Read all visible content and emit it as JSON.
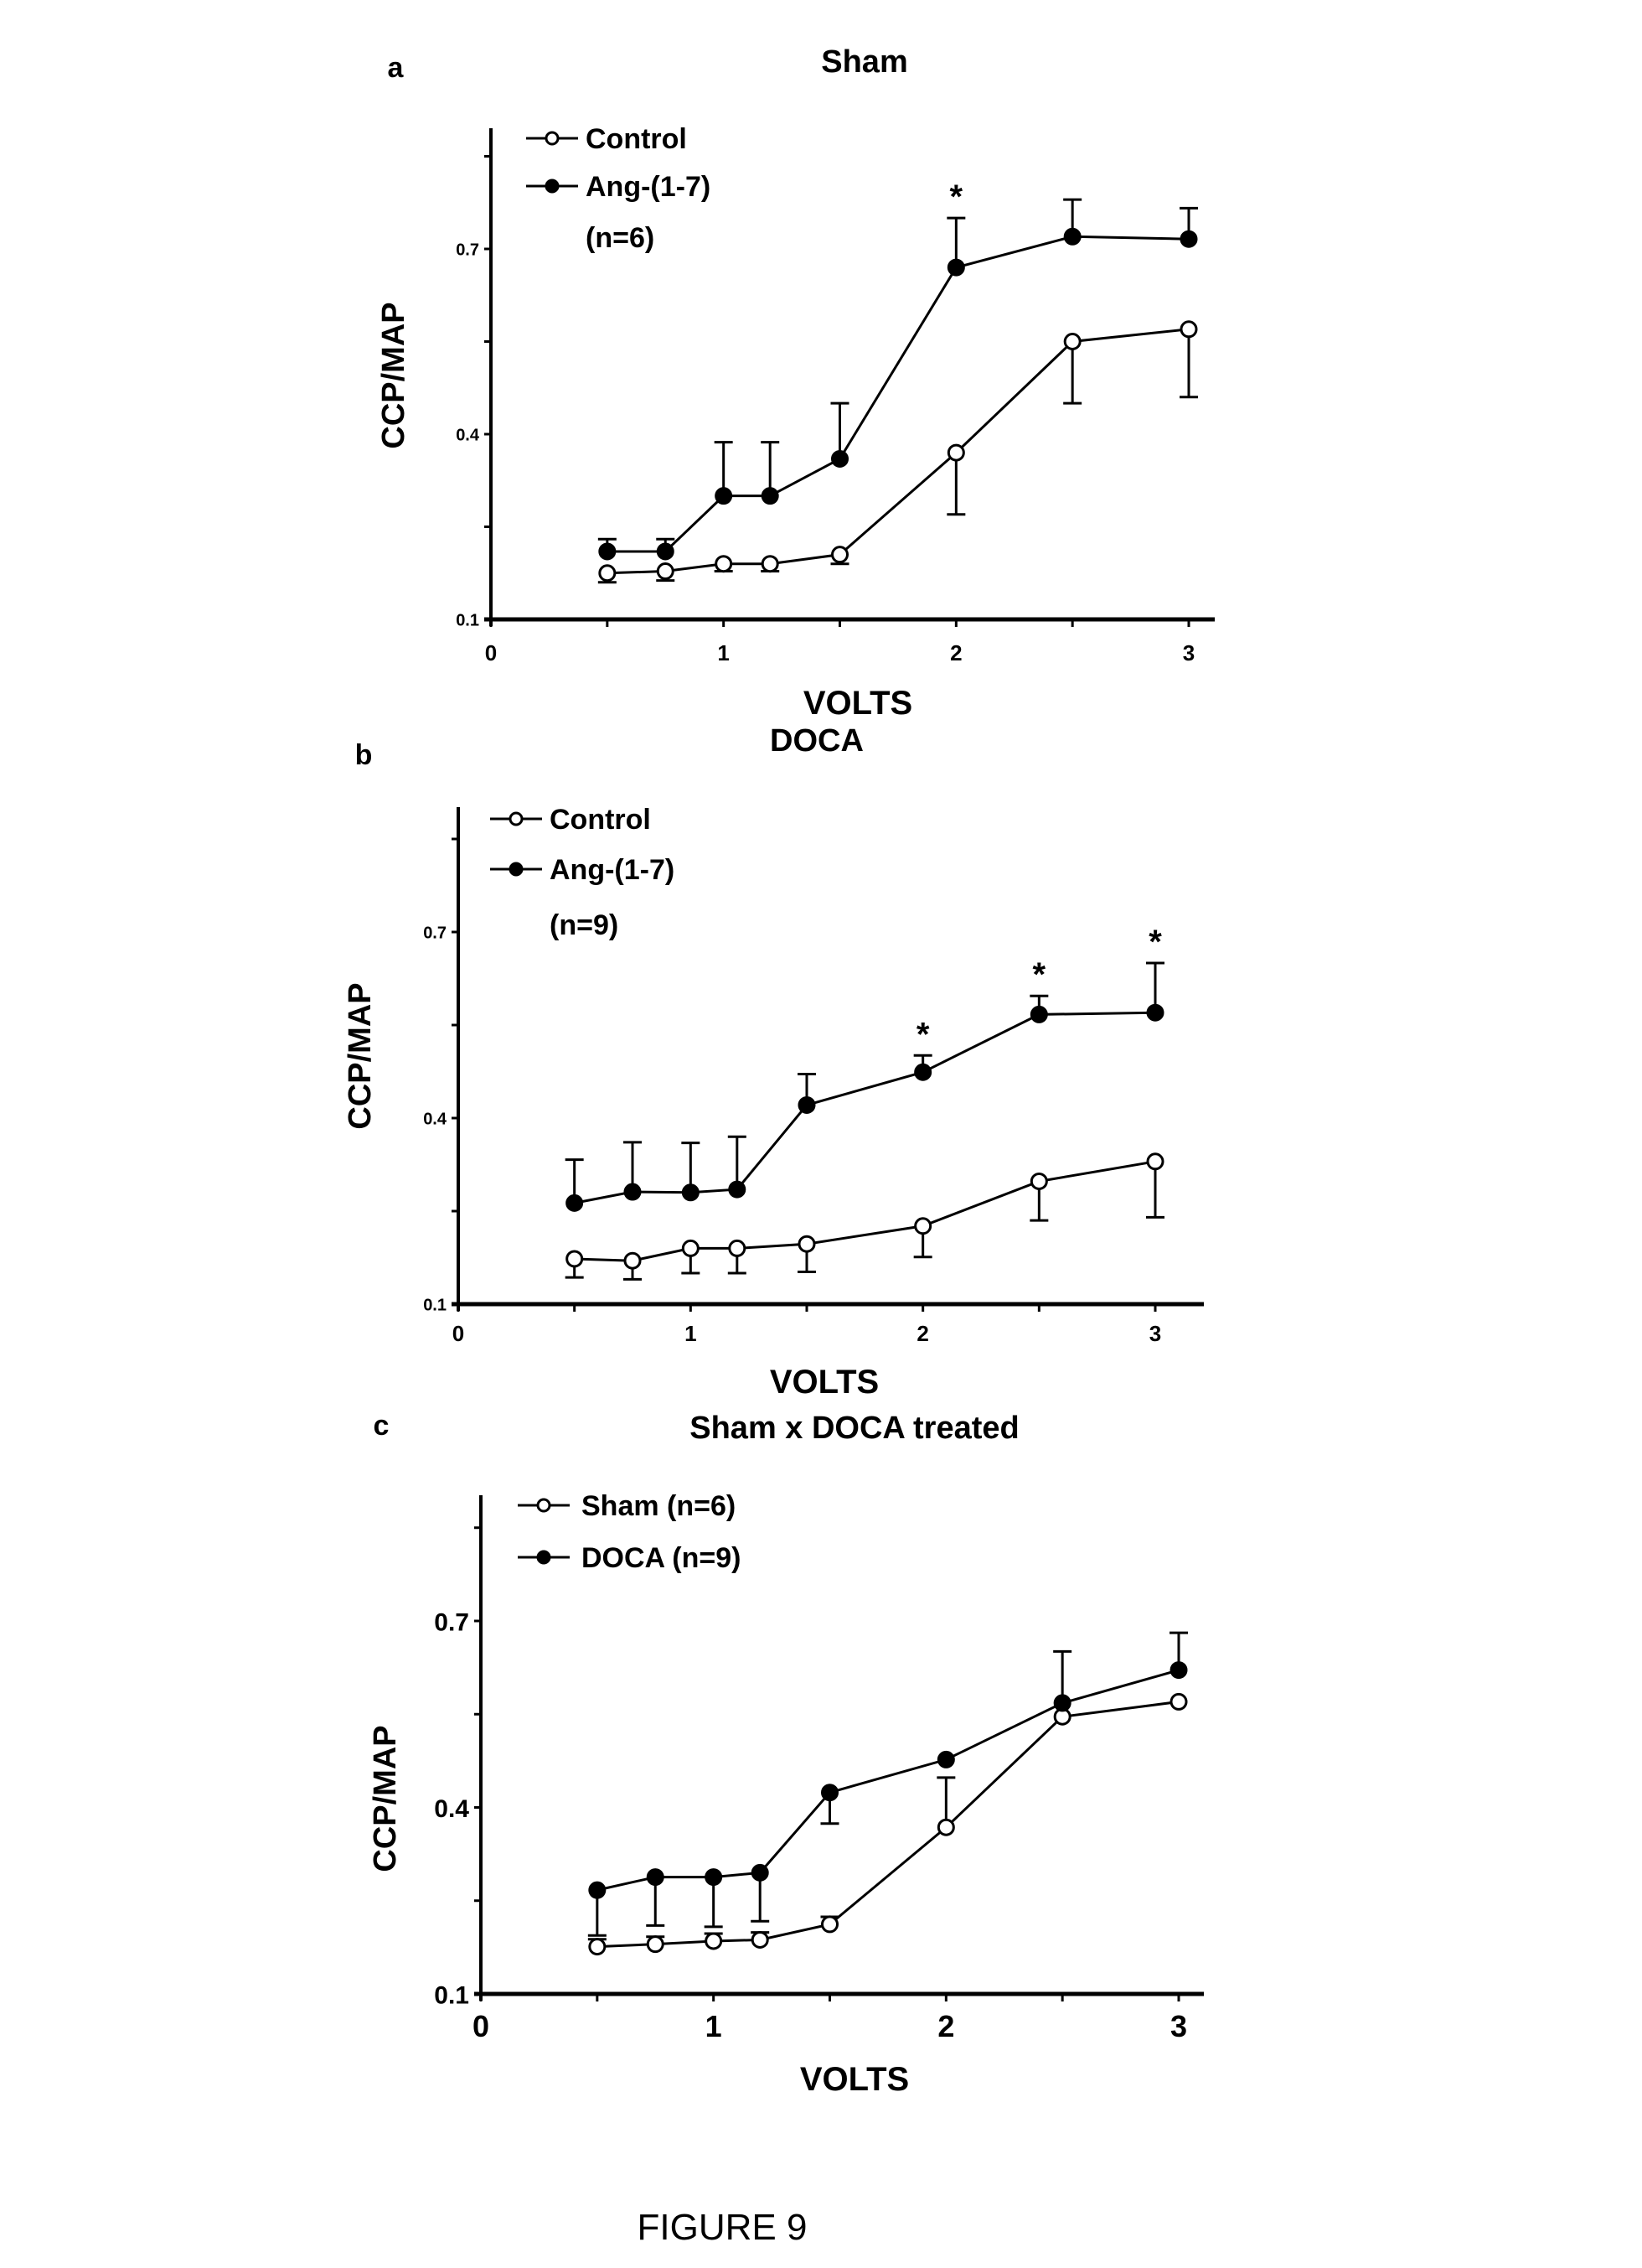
{
  "figure_caption": "FIGURE 9",
  "chart_data": [
    {
      "type": "line",
      "panel_label": "a",
      "title": "Sham",
      "xlabel": "VOLTS",
      "ylabel": "CCP/MAP",
      "xlim": [
        0,
        3.2
      ],
      "ylim": [
        0.1,
        0.9
      ],
      "xticks": [
        "0",
        "1",
        "2",
        "3"
      ],
      "yticks": [
        "0.1",
        "0.4",
        "0.7"
      ],
      "legend_note": "(n=6)",
      "legend_position": "top-left",
      "x": [
        0.5,
        0.75,
        1.0,
        1.2,
        1.5,
        2.0,
        2.5,
        3.0
      ],
      "series": [
        {
          "name": "Control",
          "marker": "open-circle",
          "values": [
            0.175,
            0.178,
            0.19,
            0.19,
            0.205,
            0.37,
            0.55,
            0.57
          ],
          "errors": [
            0.015,
            0.015,
            0.012,
            0.012,
            0.015,
            0.1,
            0.1,
            0.11
          ],
          "error_direction": "down"
        },
        {
          "name": "Ang-(1-7)",
          "marker": "filled-circle",
          "values": [
            0.21,
            0.21,
            0.3,
            0.3,
            0.36,
            0.67,
            0.72,
            0.716
          ],
          "errors": [
            0.02,
            0.02,
            0.087,
            0.087,
            0.09,
            0.08,
            0.06,
            0.05
          ],
          "error_direction": "up"
        }
      ],
      "significance": [
        {
          "x": 2.0,
          "label": "*"
        }
      ]
    },
    {
      "type": "line",
      "panel_label": "b",
      "title": "DOCA",
      "xlabel": "VOLTS",
      "ylabel": "CCP/MAP",
      "xlim": [
        0,
        3.2
      ],
      "ylim": [
        0.1,
        0.9
      ],
      "xticks": [
        "0",
        "1",
        "2",
        "3"
      ],
      "yticks": [
        "0.1",
        "0.4",
        "0.7"
      ],
      "legend_note": "(n=9)",
      "legend_position": "top-left",
      "x": [
        0.5,
        0.75,
        1.0,
        1.2,
        1.5,
        2.0,
        2.5,
        3.0
      ],
      "series": [
        {
          "name": "Control",
          "marker": "open-circle",
          "values": [
            0.173,
            0.17,
            0.19,
            0.19,
            0.197,
            0.226,
            0.298,
            0.33
          ],
          "errors": [
            0.03,
            0.03,
            0.04,
            0.04,
            0.045,
            0.05,
            0.063,
            0.09
          ],
          "error_direction": "down"
        },
        {
          "name": "Ang-(1-7)",
          "marker": "filled-circle",
          "values": [
            0.263,
            0.281,
            0.28,
            0.285,
            0.421,
            0.474,
            0.567,
            0.57
          ],
          "errors": [
            0.07,
            0.08,
            0.08,
            0.085,
            0.05,
            0.027,
            0.03,
            0.08
          ],
          "error_direction": "up"
        }
      ],
      "significance": [
        {
          "x": 2.0,
          "label": "*"
        },
        {
          "x": 2.5,
          "label": "*"
        },
        {
          "x": 3.0,
          "label": "*"
        }
      ]
    },
    {
      "type": "line",
      "panel_label": "c",
      "title": "Sham x DOCA treated",
      "xlabel": "VOLTS",
      "ylabel": "CCP/MAP",
      "xlim": [
        0,
        3.2
      ],
      "ylim": [
        0.1,
        0.9
      ],
      "xticks": [
        "0",
        "1",
        "2",
        "3"
      ],
      "yticks": [
        "0.1",
        "0.4",
        "0.7"
      ],
      "legend_note": "",
      "legend_position": "top-left",
      "x": [
        0.5,
        0.75,
        1.0,
        1.2,
        1.5,
        2.0,
        2.5,
        3.0
      ],
      "series": [
        {
          "name": "Sham (n=6)",
          "marker": "open-circle",
          "values": [
            0.176,
            0.18,
            0.185,
            0.187,
            0.212,
            0.368,
            0.546,
            0.57
          ],
          "errors": [
            0.012,
            0.012,
            0.012,
            0.012,
            0.012,
            0.08,
            0.0,
            0.0
          ],
          "error_direction": "up"
        },
        {
          "name": "DOCA (n=9)",
          "marker": "filled-circle",
          "values": [
            0.267,
            0.288,
            0.288,
            0.295,
            0.424,
            0.477,
            0.568,
            0.621
          ],
          "errors": [
            0.073,
            0.078,
            0.08,
            0.078,
            0.05,
            0.0,
            0.083,
            0.06
          ],
          "error_direction_per_point": [
            "down",
            "down",
            "down",
            "down",
            "down",
            "up",
            "up",
            "up"
          ]
        }
      ],
      "significance": []
    }
  ]
}
